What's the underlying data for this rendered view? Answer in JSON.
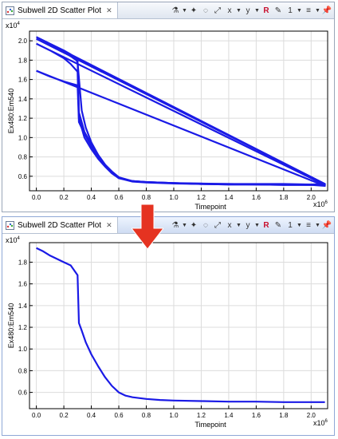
{
  "panels": [
    {
      "id": "top",
      "tab_title": "Subwell 2D Scatter Plot",
      "close_glyph": "✕",
      "sci_y": "x10",
      "sci_y_exp": "4",
      "sci_x": "x10",
      "sci_x_exp": "6"
    },
    {
      "id": "bottom",
      "tab_title": "Subwell 2D Scatter Plot",
      "close_glyph": "✕",
      "sci_y": "x10",
      "sci_y_exp": "4",
      "sci_x": "x10",
      "sci_x_exp": "6"
    }
  ],
  "toolbar_icons": [
    "wells-icon",
    "wand-icon",
    "lasso-icon",
    "zoom-fit-icon",
    "x-axis-icon",
    "y-axis-icon",
    "rw-icon",
    "pencil-icon",
    "number-icon",
    "legend-icon",
    "pin-icon"
  ],
  "arrow_color": "#e53321",
  "line_color": "#1a1ae6",
  "chart_data": [
    {
      "type": "line",
      "title": "",
      "xlabel": "Timepoint",
      "ylabel": "Ex480:Em540",
      "xlim": [
        -0.05,
        2.12
      ],
      "ylim": [
        0.45,
        2.1
      ],
      "x_ticks": [
        "0.0",
        "0.2",
        "0.4",
        "0.6",
        "0.8",
        "1.0",
        "1.2",
        "1.4",
        "1.6",
        "1.8",
        "2.0"
      ],
      "y_ticks": [
        "0.6",
        "0.8",
        "1.0",
        "1.2",
        "1.4",
        "1.6",
        "1.8",
        "2.0"
      ],
      "grid": true,
      "series": [
        {
          "x": [
            0,
            0.1,
            0.2,
            0.25,
            0.3,
            0.31,
            0.35,
            0.4,
            0.45,
            0.5,
            0.55,
            0.6,
            0.7,
            0.8,
            1.0,
            1.2,
            1.4,
            1.6,
            1.8,
            2.0,
            2.1,
            0
          ],
          "y": [
            2.04,
            1.97,
            1.9,
            1.86,
            1.81,
            1.26,
            1.06,
            0.93,
            0.82,
            0.72,
            0.65,
            0.59,
            0.55,
            0.54,
            0.53,
            0.525,
            0.52,
            0.52,
            0.52,
            0.515,
            0.52,
            2.04
          ]
        },
        {
          "x": [
            0,
            0.1,
            0.2,
            0.25,
            0.3,
            0.31,
            0.35,
            0.4,
            0.45,
            0.5,
            0.55,
            0.6,
            0.7,
            0.8,
            1.0,
            1.2,
            1.4,
            1.6,
            1.8,
            2.0,
            2.1,
            0
          ],
          "y": [
            1.97,
            1.9,
            1.82,
            1.76,
            1.68,
            1.2,
            1.0,
            0.88,
            0.78,
            0.7,
            0.63,
            0.58,
            0.545,
            0.535,
            0.525,
            0.52,
            0.515,
            0.515,
            0.51,
            0.51,
            0.51,
            1.97
          ]
        },
        {
          "x": [
            0,
            0.1,
            0.2,
            0.25,
            0.3,
            0.31,
            0.35,
            0.4,
            0.45,
            0.5,
            0.55,
            0.6,
            0.7,
            0.8,
            1.0,
            1.2,
            1.4,
            1.6,
            1.8,
            2.0,
            2.1,
            0
          ],
          "y": [
            1.69,
            1.63,
            1.58,
            1.56,
            1.54,
            1.16,
            1.04,
            0.91,
            0.8,
            0.71,
            0.64,
            0.58,
            0.55,
            0.54,
            0.53,
            0.52,
            0.515,
            0.515,
            0.51,
            0.51,
            0.5,
            1.69
          ]
        },
        {
          "x": [
            0,
            0.1,
            0.2,
            0.25,
            0.29,
            0.3,
            0.33,
            0.36,
            0.4,
            0.45,
            0.5,
            0.55,
            0.6,
            0.7,
            0.8,
            1.0,
            1.2,
            1.4,
            1.6,
            1.8,
            2.0,
            2.1,
            0
          ],
          "y": [
            2.02,
            1.95,
            1.88,
            1.84,
            1.8,
            1.78,
            1.28,
            1.1,
            0.95,
            0.82,
            0.72,
            0.64,
            0.58,
            0.55,
            0.54,
            0.53,
            0.52,
            0.52,
            0.515,
            0.515,
            0.51,
            0.52,
            2.02
          ]
        }
      ]
    },
    {
      "type": "line",
      "title": "",
      "xlabel": "Timepoint",
      "ylabel": "Ex480:Em540",
      "xlim": [
        -0.05,
        2.12
      ],
      "ylim": [
        0.45,
        1.98
      ],
      "x_ticks": [
        "0.0",
        "0.2",
        "0.4",
        "0.6",
        "0.8",
        "1.0",
        "1.2",
        "1.4",
        "1.6",
        "1.8",
        "2.0"
      ],
      "y_ticks": [
        "0.6",
        "0.8",
        "1.0",
        "1.2",
        "1.4",
        "1.6",
        "1.8"
      ],
      "grid": true,
      "series": [
        {
          "x": [
            0,
            0.05,
            0.1,
            0.15,
            0.2,
            0.25,
            0.3,
            0.31,
            0.33,
            0.36,
            0.4,
            0.45,
            0.5,
            0.55,
            0.6,
            0.65,
            0.7,
            0.8,
            0.9,
            1.0,
            1.2,
            1.4,
            1.6,
            1.8,
            2.0,
            2.1
          ],
          "y": [
            1.93,
            1.9,
            1.86,
            1.83,
            1.8,
            1.77,
            1.68,
            1.24,
            1.17,
            1.06,
            0.95,
            0.84,
            0.74,
            0.66,
            0.6,
            0.57,
            0.555,
            0.54,
            0.53,
            0.525,
            0.52,
            0.515,
            0.515,
            0.51,
            0.51,
            0.51
          ]
        }
      ]
    }
  ]
}
